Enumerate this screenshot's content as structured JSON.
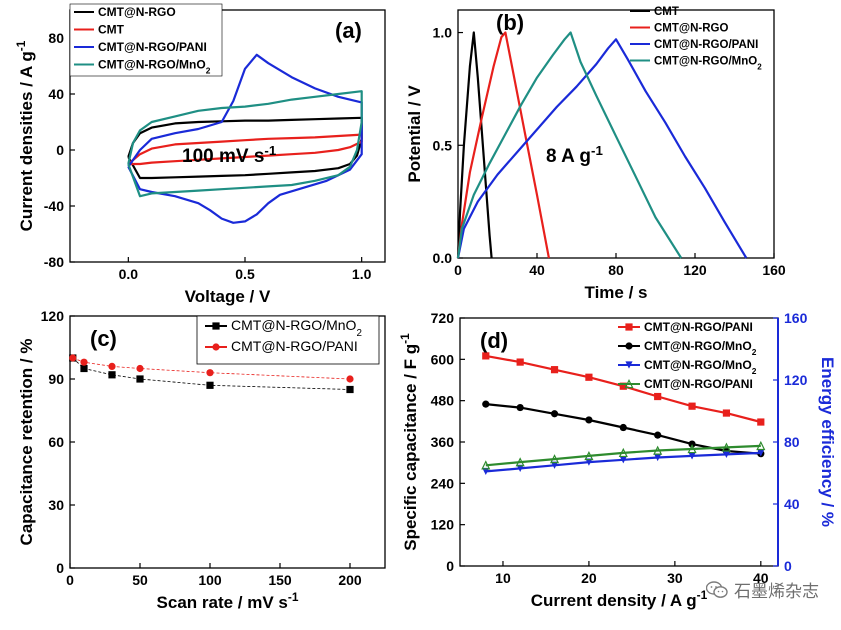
{
  "watermark": {
    "text": "石墨烯杂志",
    "icon": "wechat-icon"
  },
  "chart_data": [
    {
      "id": "a",
      "type": "line",
      "panel_label": "(a)",
      "annotation": "100 mV s-1",
      "xlabel": "Voltage / V",
      "ylabel": "Current densities / A g-1",
      "xlim": [
        -0.25,
        1.1
      ],
      "ylim": [
        -80,
        100
      ],
      "xticks": [
        0.0,
        0.5,
        1.0
      ],
      "yticks": [
        -80,
        -40,
        0,
        40,
        80
      ],
      "tick_labels_x": [
        "0.0",
        "0.5",
        "1.0"
      ],
      "tick_labels_y": [
        "-80",
        "-40",
        "0",
        "40",
        "80"
      ],
      "legend_placement": "top-left",
      "series": [
        {
          "name": "CMT@N-RGO",
          "color": "#000000",
          "x": [
            0.0,
            0.02,
            0.05,
            0.1,
            0.2,
            0.3,
            0.4,
            0.5,
            0.6,
            0.7,
            0.8,
            0.9,
            1.0,
            1.0,
            0.98,
            0.95,
            0.9,
            0.8,
            0.7,
            0.6,
            0.5,
            0.4,
            0.3,
            0.2,
            0.1,
            0.05,
            0.0
          ],
          "y": [
            -5,
            5,
            12,
            16,
            19,
            20,
            20.5,
            21,
            21,
            21.5,
            22,
            22.5,
            23,
            8,
            -4,
            -10,
            -13,
            -15,
            -16,
            -17,
            -18,
            -18.5,
            -19,
            -19.5,
            -20,
            -20,
            -5
          ]
        },
        {
          "name": "CMT",
          "color": "#e8201c",
          "x": [
            0.0,
            0.05,
            0.1,
            0.2,
            0.3,
            0.4,
            0.5,
            0.6,
            0.7,
            0.8,
            0.9,
            1.0,
            1.0,
            0.95,
            0.9,
            0.8,
            0.7,
            0.6,
            0.5,
            0.4,
            0.3,
            0.2,
            0.1,
            0.05,
            0.0
          ],
          "y": [
            -10,
            -3,
            1,
            4,
            5,
            6,
            7,
            8,
            8.5,
            9,
            10,
            11,
            6,
            2,
            0,
            -2,
            -3,
            -4,
            -5,
            -6,
            -7,
            -8,
            -9,
            -10,
            -10
          ]
        },
        {
          "name": "CMT@N-RGO/PANI",
          "color": "#1a2ad8",
          "x": [
            0.0,
            0.05,
            0.1,
            0.2,
            0.3,
            0.4,
            0.45,
            0.5,
            0.55,
            0.6,
            0.7,
            0.8,
            0.9,
            1.0,
            1.0,
            0.95,
            0.85,
            0.75,
            0.65,
            0.6,
            0.55,
            0.5,
            0.45,
            0.4,
            0.35,
            0.3,
            0.2,
            0.1,
            0.05,
            0.0
          ],
          "y": [
            -12,
            0,
            8,
            12,
            15,
            20,
            35,
            58,
            68,
            62,
            52,
            44,
            38,
            34,
            -3,
            -14,
            -22,
            -27,
            -32,
            -38,
            -46,
            -51,
            -52,
            -49,
            -43,
            -38,
            -33,
            -30,
            -28,
            -12
          ]
        },
        {
          "name": "CMT@N-RGO/MnO2",
          "color": "#1f8f84",
          "x": [
            0.0,
            0.02,
            0.05,
            0.1,
            0.2,
            0.3,
            0.4,
            0.5,
            0.6,
            0.7,
            0.8,
            0.9,
            1.0,
            1.0,
            0.98,
            0.95,
            0.9,
            0.8,
            0.7,
            0.6,
            0.5,
            0.4,
            0.3,
            0.2,
            0.1,
            0.05,
            0.0
          ],
          "y": [
            -10,
            5,
            14,
            20,
            24,
            28,
            30,
            31,
            33,
            36,
            38,
            40,
            42,
            20,
            0,
            -12,
            -18,
            -22,
            -25,
            -26,
            -27,
            -28,
            -29,
            -30,
            -31,
            -33,
            -10
          ]
        }
      ]
    },
    {
      "id": "b",
      "type": "line",
      "panel_label": "(b)",
      "annotation": "8 A g-1",
      "xlabel": "Time / s",
      "ylabel": "Potential / V",
      "xlim": [
        0,
        160
      ],
      "ylim": [
        0,
        1.1
      ],
      "xticks": [
        0,
        40,
        80,
        120,
        160
      ],
      "yticks": [
        0.0,
        0.5,
        1.0
      ],
      "tick_labels_x": [
        "0",
        "40",
        "80",
        "120",
        "160"
      ],
      "tick_labels_y": [
        "0.0",
        "0.5",
        "1.0"
      ],
      "legend_placement": "top-right",
      "series": [
        {
          "name": "CMT",
          "color": "#000000",
          "x": [
            0,
            1,
            3,
            6,
            8,
            10,
            13,
            16,
            17
          ],
          "y": [
            0,
            0.2,
            0.5,
            0.85,
            1.0,
            0.8,
            0.45,
            0.1,
            0
          ]
        },
        {
          "name": "CMT@N-RGO",
          "color": "#e8201c",
          "x": [
            0,
            2,
            6,
            12,
            18,
            22,
            24,
            28,
            34,
            40,
            46
          ],
          "y": [
            0,
            0.15,
            0.38,
            0.62,
            0.85,
            0.98,
            1.0,
            0.82,
            0.55,
            0.28,
            0
          ]
        },
        {
          "name": "CMT@N-RGO/PANI",
          "color": "#1a2ad8",
          "x": [
            0,
            3,
            10,
            20,
            30,
            40,
            50,
            60,
            70,
            76,
            80,
            86,
            95,
            105,
            115,
            125,
            135,
            146
          ],
          "y": [
            0,
            0.13,
            0.25,
            0.37,
            0.47,
            0.57,
            0.67,
            0.76,
            0.86,
            0.93,
            0.97,
            0.88,
            0.74,
            0.6,
            0.45,
            0.31,
            0.16,
            0
          ]
        },
        {
          "name": "CMT@N-RGO/MnO2",
          "color": "#1f8f84",
          "x": [
            0,
            2,
            8,
            16,
            24,
            32,
            40,
            48,
            54,
            57,
            62,
            70,
            80,
            90,
            100,
            113
          ],
          "y": [
            0,
            0.13,
            0.28,
            0.42,
            0.55,
            0.68,
            0.8,
            0.9,
            0.97,
            1.0,
            0.87,
            0.72,
            0.54,
            0.36,
            0.18,
            0
          ]
        }
      ]
    },
    {
      "id": "c",
      "type": "scatter",
      "panel_label": "(c)",
      "xlabel": "Scan rate / mV s-1",
      "ylabel": "Capacitance retention / %",
      "xlim": [
        0,
        225
      ],
      "ylim": [
        0,
        120
      ],
      "xticks": [
        0,
        50,
        100,
        150,
        200
      ],
      "yticks": [
        0,
        30,
        60,
        90,
        120
      ],
      "tick_labels_x": [
        "0",
        "50",
        "100",
        "150",
        "200"
      ],
      "tick_labels_y": [
        "0",
        "30",
        "60",
        "90",
        "120"
      ],
      "legend_placement": "top-right",
      "series": [
        {
          "name": "CMT@N-RGO/MnO2",
          "color": "#000000",
          "marker": "square",
          "x": [
            2,
            10,
            30,
            50,
            100,
            200
          ],
          "y": [
            100,
            95,
            92,
            90,
            87,
            85
          ]
        },
        {
          "name": "CMT@N-RGO/PANI",
          "color": "#e8201c",
          "marker": "circle",
          "x": [
            2,
            10,
            30,
            50,
            100,
            200
          ],
          "y": [
            100,
            98,
            96,
            95,
            93,
            90
          ]
        }
      ]
    },
    {
      "id": "d",
      "type": "line",
      "panel_label": "(d)",
      "xlabel": "Current density / A g-1",
      "ylabel": "Specific capacitance / F g-1",
      "y2label": "Energy efficiency / %",
      "xlim": [
        5,
        42
      ],
      "ylim": [
        0,
        720
      ],
      "y2lim": [
        0,
        160
      ],
      "xticks": [
        10,
        20,
        30,
        40
      ],
      "yticks": [
        0,
        120,
        240,
        360,
        480,
        600,
        720
      ],
      "y2ticks": [
        0,
        40,
        80,
        120,
        160
      ],
      "tick_labels_x": [
        "10",
        "20",
        "30",
        "40"
      ],
      "tick_labels_y": [
        "0",
        "120",
        "240",
        "360",
        "480",
        "600",
        "720"
      ],
      "tick_labels_y2": [
        "0",
        "40",
        "80",
        "120",
        "160"
      ],
      "y2color": "#1a2ad8",
      "legend_placement": "top-right",
      "series": [
        {
          "name": "CMT@N-RGO/PANI",
          "color": "#e8201c",
          "marker": "square",
          "axis": "left",
          "x": [
            8,
            12,
            16,
            20,
            24,
            28,
            32,
            36,
            40
          ],
          "y": [
            610,
            592,
            570,
            548,
            522,
            492,
            464,
            444,
            418
          ]
        },
        {
          "name": "CMT@N-RGO/MnO2",
          "color": "#000000",
          "marker": "circle",
          "axis": "left",
          "x": [
            8,
            12,
            16,
            20,
            24,
            28,
            32,
            36,
            40
          ],
          "y": [
            470,
            460,
            442,
            424,
            402,
            380,
            354,
            334,
            326
          ]
        },
        {
          "name": "CMT@N-RGO/MnO2",
          "color": "#1a2ad8",
          "marker": "triangle-down",
          "axis": "right",
          "x": [
            8,
            12,
            16,
            20,
            24,
            28,
            32,
            36,
            40
          ],
          "y": [
            61,
            63,
            65,
            67,
            68.5,
            70,
            71,
            72,
            73
          ]
        },
        {
          "name": "CMT@N-RGO/PANI",
          "color": "#2e8b2e",
          "marker": "triangle-up",
          "axis": "right",
          "x": [
            8,
            12,
            16,
            20,
            24,
            28,
            32,
            36,
            40
          ],
          "y": [
            65,
            67,
            69,
            71,
            73,
            74.5,
            75.5,
            76.5,
            77.5
          ]
        }
      ]
    }
  ]
}
